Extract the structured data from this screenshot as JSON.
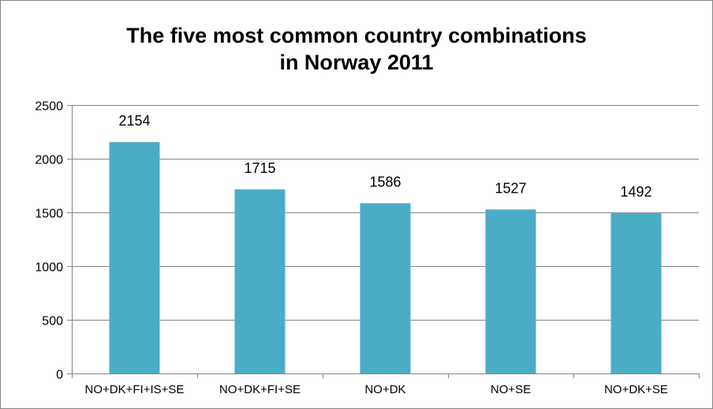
{
  "chart_data": {
    "type": "bar",
    "title_line1": "The five most common country combinations",
    "title_line2": "in Norway 2011",
    "categories": [
      "NO+DK+FI+IS+SE",
      "NO+DK+FI+SE",
      "NO+DK",
      "NO+SE",
      "NO+DK+SE"
    ],
    "values": [
      2154,
      1715,
      1586,
      1527,
      1492
    ],
    "data_labels": [
      "2154",
      "1715",
      "1586",
      "1527",
      "1492"
    ],
    "yticks": [
      0,
      500,
      1000,
      1500,
      2000,
      2500
    ],
    "ytick_labels": [
      "0",
      "500",
      "1000",
      "1500",
      "2000",
      "2500"
    ],
    "ylim": [
      0,
      2500
    ],
    "xlabel": "",
    "ylabel": "",
    "grid": true,
    "legend": "none",
    "bar_color": "#4BACC6",
    "grid_color": "#868686"
  }
}
